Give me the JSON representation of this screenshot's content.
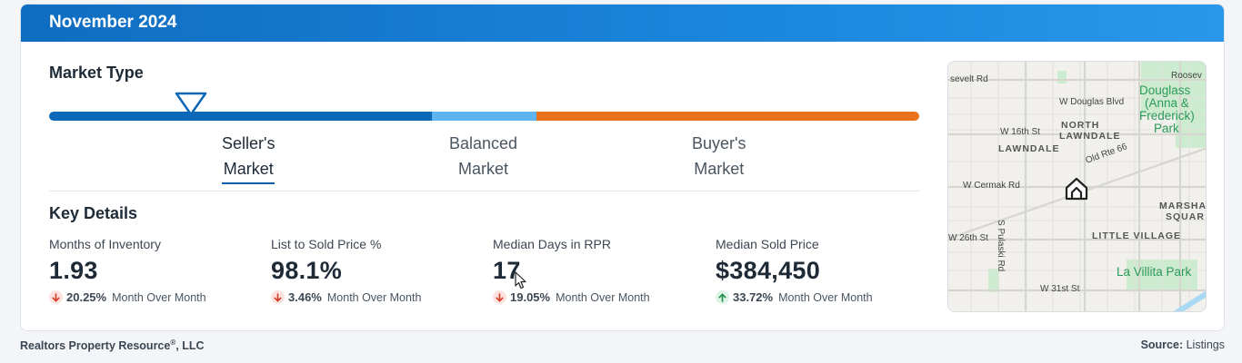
{
  "header": {
    "title": "November 2024"
  },
  "market": {
    "title": "Market Type",
    "types": [
      {
        "line1": "Seller's",
        "line2": "Market",
        "active": true
      },
      {
        "line1": "Balanced",
        "line2": "Market",
        "active": false
      },
      {
        "line1": "Buyer's",
        "line2": "Market",
        "active": false
      }
    ],
    "bar_colors": {
      "seller": "#0b68b6",
      "balanced": "#5db4ee",
      "buyer": "#e8711c"
    }
  },
  "key_details": {
    "title": "Key Details",
    "metrics": [
      {
        "label": "Months of Inventory",
        "value": "1.93",
        "direction": "down",
        "change": "20.25%",
        "period": "Month Over Month"
      },
      {
        "label": "List to Sold Price %",
        "value": "98.1%",
        "direction": "down",
        "change": "3.46%",
        "period": "Month Over Month"
      },
      {
        "label": "Median Days in RPR",
        "value": "17",
        "direction": "down",
        "change": "19.05%",
        "period": "Month Over Month"
      },
      {
        "label": "Median Sold Price",
        "value": "$384,450",
        "direction": "up",
        "change": "33.72%",
        "period": "Month Over Month"
      }
    ]
  },
  "map": {
    "labels": {
      "roosevelt_left": "sevelt Rd",
      "roosevelt_right": "Roosev",
      "douglas_blvd": "W Douglas Blvd",
      "w16th": "W 16th St",
      "north_lawndale_1": "NORTH",
      "north_lawndale_2": "LAWNDALE",
      "lawndale": "LAWNDALE",
      "old_rte": "Old Rte 66",
      "cermak": "W Cermak Rd",
      "pulaski": "S Pulaski Rd",
      "marsha_1": "MARSHA",
      "marsha_2": "SQUAR",
      "w26th": "W 26th St",
      "little_village": "LITTLE VILLAGE",
      "villita": "La Villita Park",
      "w31st": "W 31st St",
      "douglass_park_1": "Douglass",
      "douglass_park_2": "(Anna &",
      "douglass_park_3": "Frederick)",
      "douglass_park_4": "Park"
    }
  },
  "footer": {
    "company": "Realtors Property Resource",
    "company_reg": "®",
    "company_suffix": ", LLC",
    "source_label": "Source:",
    "source_value": "Listings"
  }
}
